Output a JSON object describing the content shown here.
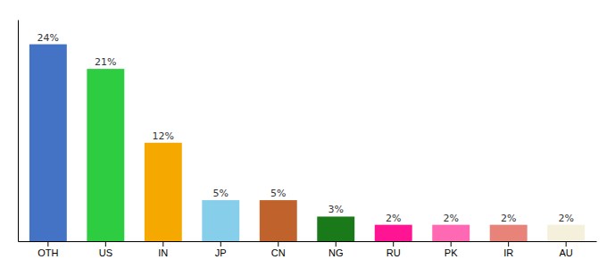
{
  "chart_data": {
    "type": "bar",
    "categories": [
      "OTH",
      "US",
      "IN",
      "JP",
      "CN",
      "NG",
      "RU",
      "PK",
      "IR",
      "AU"
    ],
    "values": [
      24,
      21,
      12,
      5,
      5,
      3,
      2,
      2,
      2,
      2
    ],
    "value_labels": [
      "24%",
      "21%",
      "12%",
      "5%",
      "5%",
      "3%",
      "2%",
      "2%",
      "2%",
      "2%"
    ],
    "colors": [
      "#4472c4",
      "#2ecc40",
      "#f5a800",
      "#87ceeb",
      "#c0622b",
      "#1a7a1a",
      "#ff1493",
      "#ff69b4",
      "#e8837a",
      "#f5f0dc"
    ],
    "ylim": [
      0,
      27
    ],
    "data_labels": true,
    "tick_labels": "x"
  }
}
